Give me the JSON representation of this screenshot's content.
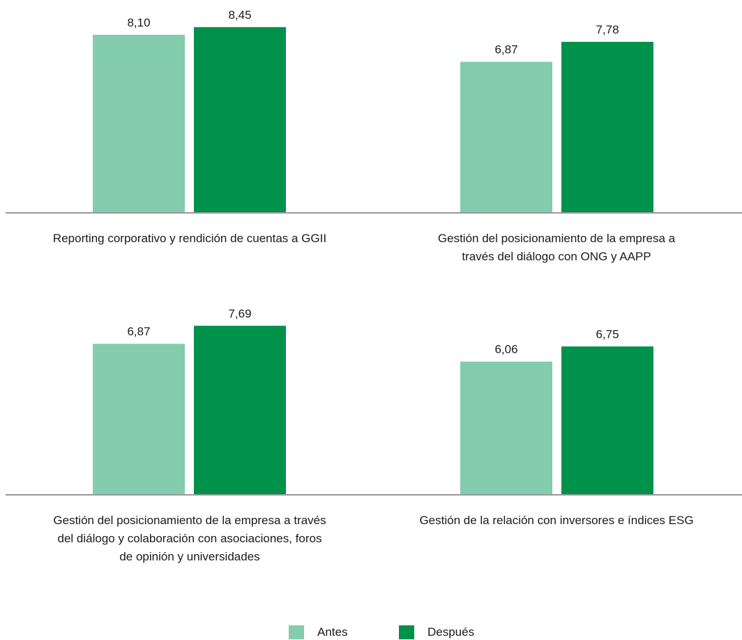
{
  "chart_data": {
    "type": "bar",
    "colors": {
      "Antes": "#83CCAD",
      "Después": "#00924A",
      "axis": "#999999"
    },
    "legend": {
      "placement": "bottom",
      "items": [
        "Antes",
        "Después"
      ]
    },
    "panels": [
      {
        "category": "Reporting corporativo y rendición de cuentas a GGII",
        "label_lines": [
          "Reporting corporativo y rendición de cuentas a GGII"
        ],
        "values": [
          8.1
        ],
        "value_labels": [
          "8,10",
          "8,45"
        ],
        "numbers": [
          8.1,
          8.45
        ]
      },
      {
        "category": "Gestión del posicionamiento de la empresa a través del diálogo con ONG y AAPP",
        "label_lines": [
          "Gestión del posicionamiento de la empresa a",
          "través del diálogo con ONG y AAPP"
        ],
        "value_labels": [
          "6,87",
          "7,78"
        ],
        "numbers": [
          6.87,
          7.78
        ]
      },
      {
        "category": "Gestión del posicionamiento de la empresa a través del diálogo y colaboración con asociaciones, foros de opinión y universidades",
        "label_lines": [
          "Gestión del posicionamiento de la empresa a través",
          "del diálogo y colaboración con asociaciones, foros",
          "de opinión y universidades"
        ],
        "value_labels": [
          "6,87",
          "7,69"
        ],
        "numbers": [
          6.87,
          7.69
        ]
      },
      {
        "category": "Gestión de la relación con inversores e índices ESG",
        "label_lines": [
          "Gestión de la relación con inversores e índices ESG"
        ],
        "value_labels": [
          "6,06",
          "6,75"
        ],
        "numbers": [
          6.06,
          6.75
        ]
      }
    ],
    "series": [
      {
        "name": "Antes",
        "values": [
          8.1,
          6.87,
          6.87,
          6.06
        ]
      },
      {
        "name": "Después",
        "values": [
          8.45,
          7.78,
          7.69,
          6.75
        ]
      }
    ]
  }
}
